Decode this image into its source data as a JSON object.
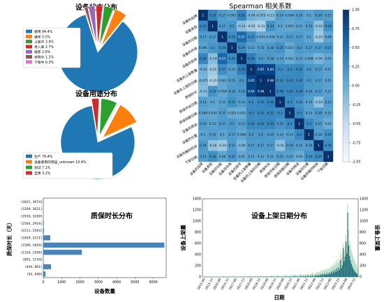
{
  "chart_data": [
    {
      "type": "pie",
      "title": "设备状态分布",
      "labels": [
        "使用",
        "维修",
        "上架中",
        "待入库",
        "报废",
        "采购中",
        "下架中"
      ],
      "values": [
        84.4,
        5.0,
        3.9,
        2.7,
        2.6,
        1.3,
        0.3
      ],
      "legend_labels": [
        "使用 84.4%",
        "维修 5.0%",
        "上架中 3.9%",
        "待入库 2.7%",
        "报废 2.6%",
        "采购中 1.3%",
        "下架中 0.3%"
      ],
      "colors": [
        "#1f77b4",
        "#ff7f0e",
        "#2ca02c",
        "#d62728",
        "#9467bd",
        "#8c564b",
        "#e377c2"
      ],
      "legend_position": "upper-left"
    },
    {
      "type": "pie",
      "title": "设备用途分布",
      "labels": [
        "生产",
        "设备使用的用途_unknown",
        "测试",
        "自用"
      ],
      "values": [
        79.4,
        10.4,
        7.1,
        3.2
      ],
      "legend_labels": [
        "生产 79.4%",
        "设备使用的用途_unknown 10.4%",
        "测试 7.1%",
        "自用 3.2%"
      ],
      "colors": [
        "#1f77b4",
        "#ff7f0e",
        "#2ca02c",
        "#d62728"
      ],
      "legend_position": "lower-left"
    },
    {
      "type": "heatmap",
      "title": "Spearman 相关系数",
      "labels": [
        "设备的品牌",
        "设备类型",
        "设备的功能",
        "设备的作用",
        "设备的型号",
        "设备的上架数量",
        "设备的上架的日期",
        "质保时长",
        "质保开始日期",
        "质保到期日期",
        "设备的用途",
        "设备的位置",
        "设备所属的机房",
        "下架日期"
      ],
      "matrix": [
        [
          1,
          0.33,
          0.17,
          0.091,
          0.35,
          -0.04,
          -0.075,
          -0.13,
          0.14,
          0.099,
          0.16,
          0.1,
          0.19,
          0.15
        ],
        [
          0.33,
          1,
          0.17,
          0.2,
          -0.14,
          -0.25,
          -0.33,
          0.23,
          0.1,
          0.054,
          0.11,
          0.15,
          -0.18,
          0.26
        ],
        [
          0.17,
          0.17,
          1,
          0.28,
          0.57,
          0.27,
          0.041,
          0.058,
          0.11,
          0.17,
          0.17,
          0.1,
          -0.24,
          0.08
        ],
        [
          0.091,
          0.2,
          0.28,
          1,
          0.29,
          0.13,
          0.15,
          0.18,
          0.25,
          0.025,
          0.2,
          0.17,
          0.17,
          0.21
        ],
        [
          0.35,
          -0.14,
          0.57,
          0.29,
          1,
          0.39,
          0.2,
          0.18,
          0.14,
          0.022,
          0.13,
          0.068,
          -0.06,
          0.05
        ],
        [
          -0.04,
          -0.25,
          0.27,
          0.13,
          0.39,
          1,
          0.85,
          0.84,
          0.3,
          0.3,
          0.32,
          0.2,
          0.17,
          0.11
        ],
        [
          -0.075,
          -0.33,
          0.041,
          0.15,
          0.2,
          0.85,
          1,
          0.98,
          0.32,
          0.32,
          0.32,
          0.2,
          0.17,
          0.11
        ],
        [
          -0.13,
          0.23,
          0.058,
          0.18,
          0.18,
          0.84,
          0.98,
          1,
          0.36,
          0.32,
          0.34,
          0.19,
          0.17,
          0.11
        ],
        [
          0.14,
          0.1,
          0.11,
          0.25,
          0.14,
          0.3,
          0.32,
          0.36,
          1,
          0.3,
          0.22,
          0.13,
          -0.16,
          0.15
        ],
        [
          0.099,
          0.054,
          0.17,
          0.025,
          0.022,
          0.3,
          0.32,
          0.32,
          0.3,
          1,
          0.3,
          0.13,
          0.19,
          0.12
        ],
        [
          0.16,
          0.11,
          0.17,
          0.2,
          0.13,
          0.32,
          0.32,
          0.34,
          0.22,
          0.3,
          1,
          0.3,
          0.15,
          0.02
        ],
        [
          0.1,
          0.15,
          0.1,
          0.17,
          0.068,
          0.2,
          0.2,
          0.19,
          0.13,
          0.13,
          0.3,
          1,
          0.16,
          0.24
        ],
        [
          0.19,
          -0.18,
          -0.24,
          0.17,
          -0.06,
          0.17,
          0.17,
          0.17,
          -0.16,
          0.19,
          0.15,
          0.16,
          1,
          0.29
        ],
        [
          0.15,
          0.26,
          0.08,
          0.21,
          0.05,
          0.11,
          0.11,
          0.11,
          0.15,
          0.12,
          0.02,
          0.24,
          0.29,
          1
        ]
      ],
      "colorbar_ticks": [
        1.0,
        0.75,
        0.5,
        0.25,
        0.0,
        -0.25,
        -0.5,
        -0.75,
        -1.0
      ],
      "colorbar_tick_labels": [
        "1.00",
        "0.75",
        "0.50",
        "0.25",
        "0.00",
        "-0.25",
        "-0.50",
        "-0.75",
        "-1.00"
      ],
      "vmin": -1,
      "vmax": 1,
      "colormap": [
        "#f7fbff",
        "#deebf7",
        "#c6dbef",
        "#9ecae1",
        "#6baed6",
        "#4292c6",
        "#2171b5",
        "#08519c",
        "#08306b"
      ]
    },
    {
      "type": "bar",
      "orientation": "horizontal",
      "title": "质保时长分布",
      "xlabel": "设备数量",
      "ylabel": "质保时长（天）",
      "categories": [
        "(92, 449]",
        "(449, 801]",
        "(801, 1154]",
        "(1154, 1506]",
        "(1506, 1859]",
        "(1859, 2211]",
        "(2211, 2564]",
        "(2564, 2916]",
        "(2916, 3269]",
        "(3269, 3621]",
        "(3621, 3974]"
      ],
      "values": [
        120,
        420,
        10,
        2100,
        6600,
        380,
        40,
        30,
        10,
        10,
        10
      ],
      "xlim": [
        0,
        6700
      ],
      "xticks": [
        0,
        1000,
        2000,
        3000,
        4000,
        5000,
        6000
      ],
      "color": "#4a84b8"
    },
    {
      "type": "bar",
      "title": "设备上架日期分布",
      "xlabel": "日期",
      "ylabel": "设备上架量",
      "y2label": "设备上架量",
      "ylim": [
        0,
        1400
      ],
      "yticks": [
        0,
        200,
        400,
        600,
        800,
        1000,
        1200,
        1400
      ],
      "x_tick_labels": [
        "2015-06",
        "2015-12",
        "2016-06",
        "2016-12",
        "2017-06",
        "2017-12",
        "2018-06",
        "2018-12",
        "2019-06",
        "2019-12",
        "2020-06",
        "2020-12",
        "2021-06",
        "2021-12",
        "2022-06",
        "2022-12",
        "2023-06",
        "2023-12",
        "2024-06",
        "2024-12"
      ],
      "values": [
        3,
        0,
        2,
        0,
        4,
        0,
        0,
        3,
        0,
        0,
        2,
        0,
        5,
        0,
        0,
        3,
        0,
        2,
        0,
        0,
        4,
        0,
        0,
        6,
        0,
        2,
        0,
        0,
        3,
        0,
        5,
        0,
        0,
        2,
        0,
        7,
        0,
        0,
        3,
        0,
        0,
        4,
        0,
        2,
        0,
        0,
        6,
        0,
        0,
        3,
        0,
        2,
        8,
        0,
        0,
        4,
        0,
        3,
        0,
        0,
        5,
        0,
        2,
        0,
        9,
        0,
        0,
        4,
        0,
        3,
        0,
        6,
        0,
        0,
        2,
        0,
        10,
        0,
        5,
        0,
        0,
        4,
        0,
        12,
        0,
        3,
        0,
        0,
        7,
        0,
        5,
        0,
        14,
        0,
        0,
        6,
        0,
        9,
        0,
        4,
        12,
        0,
        16,
        0,
        8,
        0,
        10,
        0,
        22,
        0,
        6,
        14,
        0,
        18,
        12,
        0,
        28,
        8,
        0,
        20,
        10,
        34,
        0,
        12,
        26,
        16,
        40,
        18,
        30,
        22,
        48,
        26,
        55,
        30,
        62,
        40,
        45,
        70,
        36,
        58,
        82,
        50,
        95,
        64,
        110,
        75,
        130,
        88,
        150,
        105,
        175,
        125,
        300,
        160,
        210,
        520,
        280,
        360,
        640,
        420,
        1150,
        560,
        380,
        300,
        240,
        190,
        150,
        120,
        95,
        80,
        60,
        45
      ],
      "overlay_values": [
        10,
        5,
        8,
        4,
        10,
        6,
        5,
        9,
        6,
        5,
        8,
        6,
        12,
        6,
        5,
        10,
        7,
        8,
        6,
        6,
        12,
        7,
        6,
        15,
        7,
        9,
        6,
        7,
        10,
        8,
        14,
        8,
        7,
        9,
        8,
        18,
        9,
        8,
        11,
        9,
        8,
        13,
        9,
        10,
        9,
        8,
        16,
        10,
        9,
        12,
        10,
        11,
        20,
        11,
        10,
        14,
        11,
        12,
        11,
        10,
        16,
        12,
        11,
        12,
        22,
        13,
        12,
        16,
        13,
        14,
        13,
        18,
        14,
        13,
        14,
        14,
        24,
        15,
        18,
        15,
        15,
        18,
        16,
        28,
        17,
        18,
        17,
        17,
        24,
        18,
        22,
        19,
        34,
        20,
        20,
        26,
        21,
        30,
        22,
        24,
        36,
        24,
        40,
        26,
        32,
        27,
        38,
        28,
        54,
        30,
        34,
        46,
        32,
        52,
        44,
        36,
        68,
        40,
        38,
        60,
        48,
        80,
        46,
        56,
        74,
        62,
        96,
        72,
        88,
        80,
        112,
        92,
        126,
        104,
        140,
        120,
        128,
        156,
        116,
        142,
        180,
        140,
        208,
        170,
        236,
        196,
        270,
        220,
        300,
        250,
        330,
        280,
        440,
        340,
        420,
        600,
        470,
        560,
        760,
        620,
        1300,
        840,
        640,
        560,
        480,
        420,
        360,
        310,
        270,
        240,
        210,
        180
      ],
      "color": "#1f6f7a",
      "overlay_color": "#a8d5ba"
    }
  ]
}
